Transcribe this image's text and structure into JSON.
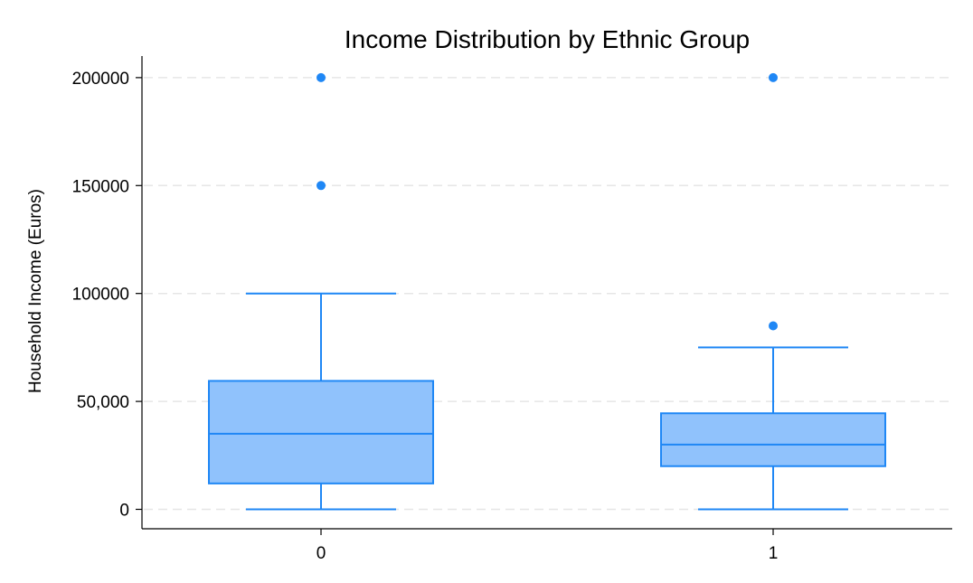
{
  "chart_data": {
    "type": "box",
    "title": "Income Distribution by Ethnic Group",
    "xlabel": "",
    "ylabel": "Household Income (Euros)",
    "ylim": [
      -9000,
      210000
    ],
    "yticks": [
      0,
      50000,
      100000,
      150000,
      200000
    ],
    "ytick_labels": [
      "0",
      "50,000",
      "100000",
      "150000",
      "200000"
    ],
    "categories": [
      "0",
      "1"
    ],
    "grid": true,
    "colors": {
      "box_fill": "#90c2fc",
      "box_stroke": "#1f87f5",
      "outlier": "#1f87f5",
      "grid": "#e6e6e6"
    },
    "boxes": [
      {
        "category": "0",
        "whisker_low": 0,
        "q1": 12000,
        "median": 35000,
        "q3": 59500,
        "whisker_high": 100000,
        "outliers": [
          150000,
          200000
        ]
      },
      {
        "category": "1",
        "whisker_low": 0,
        "q1": 20000,
        "median": 30000,
        "q3": 44500,
        "whisker_high": 75000,
        "outliers": [
          85000,
          200000
        ]
      }
    ]
  }
}
